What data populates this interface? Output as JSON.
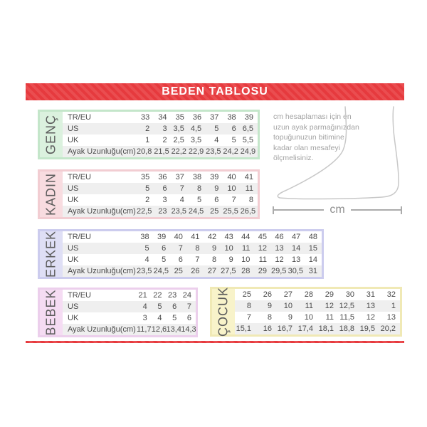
{
  "page": {
    "title": "BEDEN TABLOSU",
    "accent_red": "#e63a3e",
    "stripe_red": "#ea4d50",
    "row_stripe_color": "#efefef",
    "table_text_color": "#4a4a4a"
  },
  "measure_note": {
    "text": "cm hesaplaması için en uzun ayak parmağınızdan topuğunuzun bitimine kadar olan mesafeyi ölçmelisiniz.",
    "unit_label": "cm",
    "illustration": "foot-outline-icon"
  },
  "tables": {
    "genc": {
      "label": "GENÇ",
      "colors": {
        "border": "#c4e6ca",
        "label_bg": "#dbf1de"
      },
      "row_headers": [
        "TR/EU",
        "US",
        "UK",
        "Ayak Uzunluğu(cm)"
      ],
      "rows": [
        [
          "33",
          "34",
          "35",
          "36",
          "37",
          "38",
          "39"
        ],
        [
          "2",
          "3",
          "3,5",
          "4,5",
          "5",
          "6",
          "6,5"
        ],
        [
          "1",
          "2",
          "2,5",
          "3,5",
          "4",
          "5",
          "5,5"
        ],
        [
          "20,8",
          "21,5",
          "22,2",
          "22,9",
          "23,5",
          "24,2",
          "24,9"
        ]
      ]
    },
    "kadin": {
      "label": "KADIN",
      "colors": {
        "border": "#f2cdd2",
        "label_bg": "#f8dce0"
      },
      "row_headers": [
        "TR/EU",
        "US",
        "UK",
        "Ayak Uzunluğu(cm)"
      ],
      "rows": [
        [
          "35",
          "36",
          "37",
          "38",
          "39",
          "40",
          "41"
        ],
        [
          "5",
          "6",
          "7",
          "8",
          "9",
          "10",
          "11"
        ],
        [
          "2",
          "3",
          "4",
          "5",
          "6",
          "7",
          "8"
        ],
        [
          "22,5",
          "23",
          "23,5",
          "24,5",
          "25",
          "25,5",
          "26,5"
        ]
      ]
    },
    "erkek": {
      "label": "ERKEK",
      "colors": {
        "border": "#ccccee",
        "label_bg": "#dfdff5"
      },
      "row_headers": [
        "TR/EU",
        "US",
        "UK",
        "Ayak Uzunluğu(cm)"
      ],
      "rows": [
        [
          "38",
          "39",
          "40",
          "41",
          "42",
          "43",
          "44",
          "45",
          "46",
          "47",
          "48"
        ],
        [
          "5",
          "6",
          "7",
          "8",
          "9",
          "10",
          "11",
          "12",
          "13",
          "14",
          "15"
        ],
        [
          "4",
          "5",
          "6",
          "7",
          "8",
          "9",
          "10",
          "11",
          "12",
          "13",
          "14"
        ],
        [
          "23,5",
          "24,5",
          "25",
          "26",
          "27",
          "27,5",
          "28",
          "29",
          "29,5",
          "30,5",
          "31"
        ]
      ]
    },
    "bebek": {
      "label": "BEBEK",
      "colors": {
        "border": "#eccfec",
        "label_bg": "#f5dcf3"
      },
      "row_headers": [
        "TR/EU",
        "US",
        "UK",
        "Ayak Uzunluğu(cm)"
      ],
      "rows": [
        [
          "21",
          "22",
          "23",
          "24"
        ],
        [
          "4",
          "5",
          "6",
          "7"
        ],
        [
          "3",
          "4",
          "5",
          "6"
        ],
        [
          "11,7",
          "12,6",
          "13,4",
          "14,3"
        ]
      ]
    },
    "cocuk": {
      "label": "ÇOCUK",
      "colors": {
        "border": "#f0e9b5",
        "label_bg": "#f8f3ca"
      },
      "row_headers": [],
      "rows": [
        [
          "25",
          "26",
          "27",
          "28",
          "29",
          "30",
          "31",
          "32"
        ],
        [
          "8",
          "9",
          "10",
          "11",
          "12",
          "12,5",
          "13",
          "1"
        ],
        [
          "7",
          "8",
          "9",
          "10",
          "11",
          "11,5",
          "12",
          "13"
        ],
        [
          "15,1",
          "16",
          "16,7",
          "17,4",
          "18,1",
          "18,8",
          "19,5",
          "20,2"
        ]
      ]
    }
  }
}
